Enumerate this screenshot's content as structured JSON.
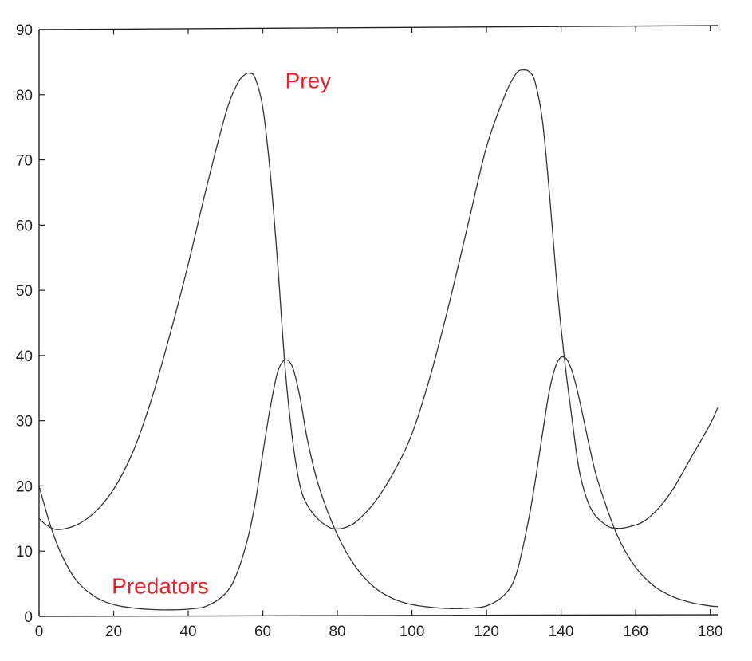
{
  "chart_data": {
    "type": "line",
    "title": "",
    "xlabel": "",
    "ylabel": "",
    "xlim": [
      0,
      182
    ],
    "ylim": [
      0,
      90
    ],
    "x_ticks": [
      0,
      20,
      40,
      60,
      80,
      100,
      120,
      140,
      160,
      180
    ],
    "x_tick_labels": [
      "0",
      "20",
      "40",
      "60",
      "80",
      "100",
      "120",
      "140",
      "160",
      "180"
    ],
    "y_ticks": [
      0,
      10,
      20,
      30,
      40,
      50,
      60,
      70,
      80,
      90
    ],
    "y_tick_labels": [
      "0",
      "10",
      "20",
      "30",
      "40",
      "50",
      "60",
      "70",
      "80",
      "90"
    ],
    "grid": false,
    "legend": "none",
    "annotation_color": "#e8202a",
    "line_color": "#333333",
    "series": [
      {
        "name": "Prey",
        "x": [
          0,
          2,
          5,
          10,
          15,
          20,
          25,
          30,
          35,
          40,
          45,
          50,
          53,
          55,
          56.5,
          58,
          60,
          62,
          64,
          66,
          68,
          70,
          72,
          75,
          78,
          80,
          82,
          85,
          90,
          95,
          100,
          105,
          110,
          115,
          120,
          125,
          128,
          130,
          131.5,
          133,
          135,
          137,
          139,
          141,
          143,
          145,
          148,
          152,
          155,
          158,
          162,
          166,
          170,
          175,
          180,
          182
        ],
        "y": [
          15,
          14,
          13.3,
          14,
          16,
          19.5,
          25,
          33,
          43,
          54,
          66,
          77,
          81.5,
          83,
          83.3,
          82.5,
          78,
          68,
          54,
          38,
          27,
          20,
          17,
          14.8,
          13.6,
          13.4,
          13.6,
          14.5,
          17.5,
          22,
          28,
          37,
          48,
          60,
          72,
          80,
          83.3,
          83.8,
          83.5,
          82,
          76,
          64,
          50,
          39,
          30,
          22,
          16.5,
          14,
          13.5,
          13.7,
          14.5,
          16.5,
          19.5,
          24.5,
          29.5,
          32
        ]
      },
      {
        "name": "Predators",
        "x": [
          0,
          3,
          6,
          10,
          15,
          20,
          25,
          30,
          35,
          40,
          45,
          50,
          53,
          56,
          58,
          60,
          62,
          64,
          66,
          68,
          70,
          72,
          75,
          80,
          85,
          90,
          95,
          100,
          105,
          110,
          115,
          120,
          125,
          128,
          131,
          133,
          135,
          137,
          139,
          141,
          143,
          145,
          148,
          150,
          155,
          160,
          165,
          170,
          175,
          180,
          182
        ],
        "y": [
          20,
          14,
          9.5,
          5.5,
          3,
          1.8,
          1.3,
          1.05,
          1,
          1.1,
          1.6,
          3.5,
          6.5,
          12,
          17.5,
          25,
          32,
          37.5,
          39.3,
          38.2,
          33.5,
          27,
          20,
          12.5,
          7.5,
          4.4,
          2.7,
          1.8,
          1.4,
          1.2,
          1.25,
          1.6,
          3.4,
          6.5,
          14,
          20.5,
          28,
          35,
          39,
          39.7,
          37.5,
          33,
          25,
          20.5,
          12.5,
          7.5,
          4.6,
          3,
          2.1,
          1.6,
          1.5
        ]
      }
    ],
    "annotations": [
      {
        "text": "Prey",
        "x": 66,
        "y": 81,
        "series": "Prey"
      },
      {
        "text": "Predators",
        "x": 19.5,
        "y": 3.5,
        "series": "Predators"
      }
    ]
  }
}
